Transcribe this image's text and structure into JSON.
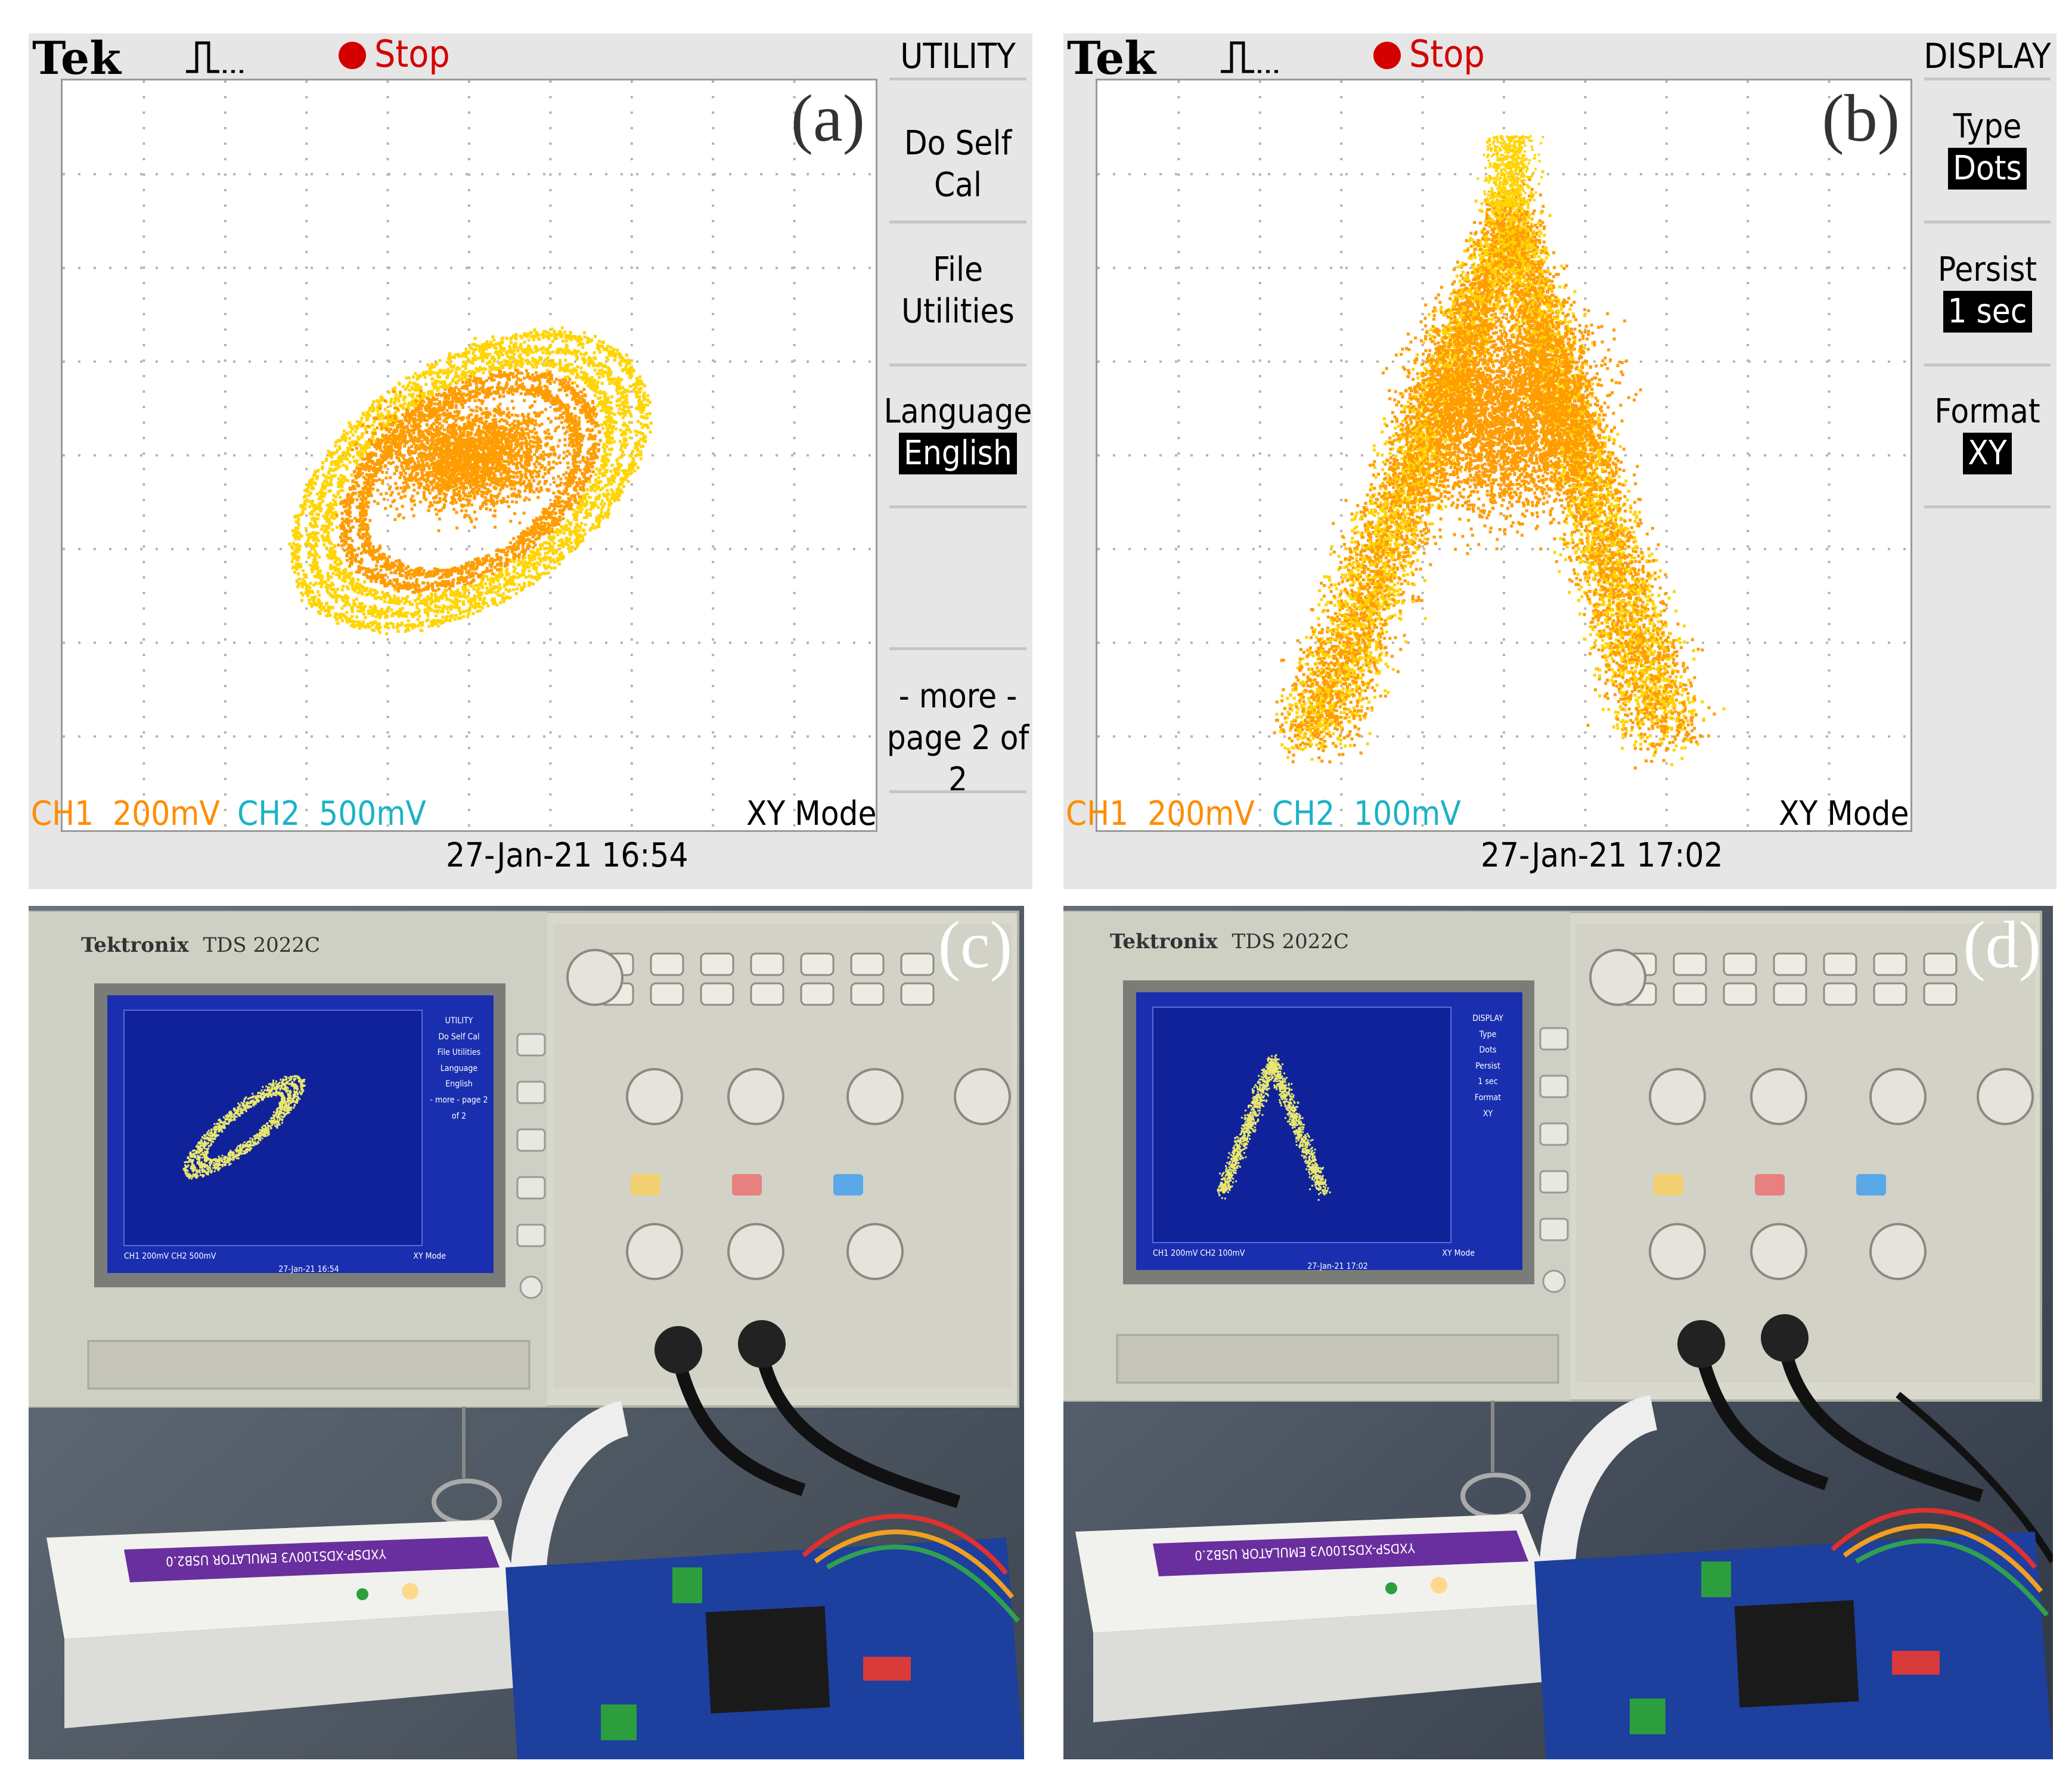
{
  "panel_a": {
    "label": "(a)",
    "brand": "Tek",
    "status_text": "Stop",
    "menu_title": "UTILITY",
    "menu_items": [
      {
        "text": "Do Self Cal"
      },
      {
        "text": "File"
      },
      {
        "text": "Utilities"
      },
      {
        "text": "Language"
      },
      {
        "text": "English",
        "highlight": true
      },
      {
        "text": "- more -"
      },
      {
        "text": "page 2 of 2"
      }
    ],
    "ch1_label": "CH1",
    "ch1_value": "200mV",
    "ch2_label": "CH2",
    "ch2_value": "500mV",
    "mode": "XY Mode",
    "timestamp": "27-Jan-21 16:54"
  },
  "panel_b": {
    "label": "(b)",
    "brand": "Tek",
    "status_text": "Stop",
    "menu_title": "DISPLAY",
    "menu_items": [
      {
        "text": "Type"
      },
      {
        "text": "Dots",
        "highlight": true
      },
      {
        "text": "Persist"
      },
      {
        "text": "1 sec",
        "highlight": true
      },
      {
        "text": "Format"
      },
      {
        "text": "XY",
        "highlight": true
      }
    ],
    "ch1_label": "CH1",
    "ch1_value": "200mV",
    "ch2_label": "CH2",
    "ch2_value": "100mV",
    "mode": "XY Mode",
    "timestamp": "27-Jan-21 17:02"
  },
  "panel_c": {
    "label": "(c)",
    "brand": "Tektronix",
    "model": "TDS 2022C",
    "screen_menu": [
      "UTILITY",
      "Do Self Cal",
      "File Utilities",
      "Language",
      "English",
      "- more - page 2 of 2"
    ],
    "screen_status": "CH1 200mV  CH2 500mV",
    "screen_mode": "XY Mode",
    "screen_time": "27-Jan-21 16:54",
    "emulator_text": "YXDSP-XDS100V3  EMULATOR  USB2.0"
  },
  "panel_d": {
    "label": "(d)",
    "brand": "Tektronix",
    "model": "TDS 2022C",
    "screen_menu": [
      "DISPLAY",
      "Type",
      "Dots",
      "Persist",
      "1 sec",
      "Format",
      "XY"
    ],
    "screen_status": "CH1 200mV  CH2 100mV",
    "screen_mode": "XY Mode",
    "screen_time": "27-Jan-21 17:02",
    "emulator_text": "YXDSP-XDS100V3  EMULATOR  USB2.0"
  },
  "colors": {
    "trace_yellow": "#ffd400",
    "trace_orange": "#ff9c00",
    "ch1": "#ff8c00",
    "ch2": "#1ab3c7",
    "stop": "#d40000",
    "scope_screen_blue": "#1a2fb0",
    "board_blue": "#1d3f9e"
  },
  "icons": {
    "trigger_icon": "pulse-trigger-icon",
    "stop_icon": "red-dot-icon"
  }
}
